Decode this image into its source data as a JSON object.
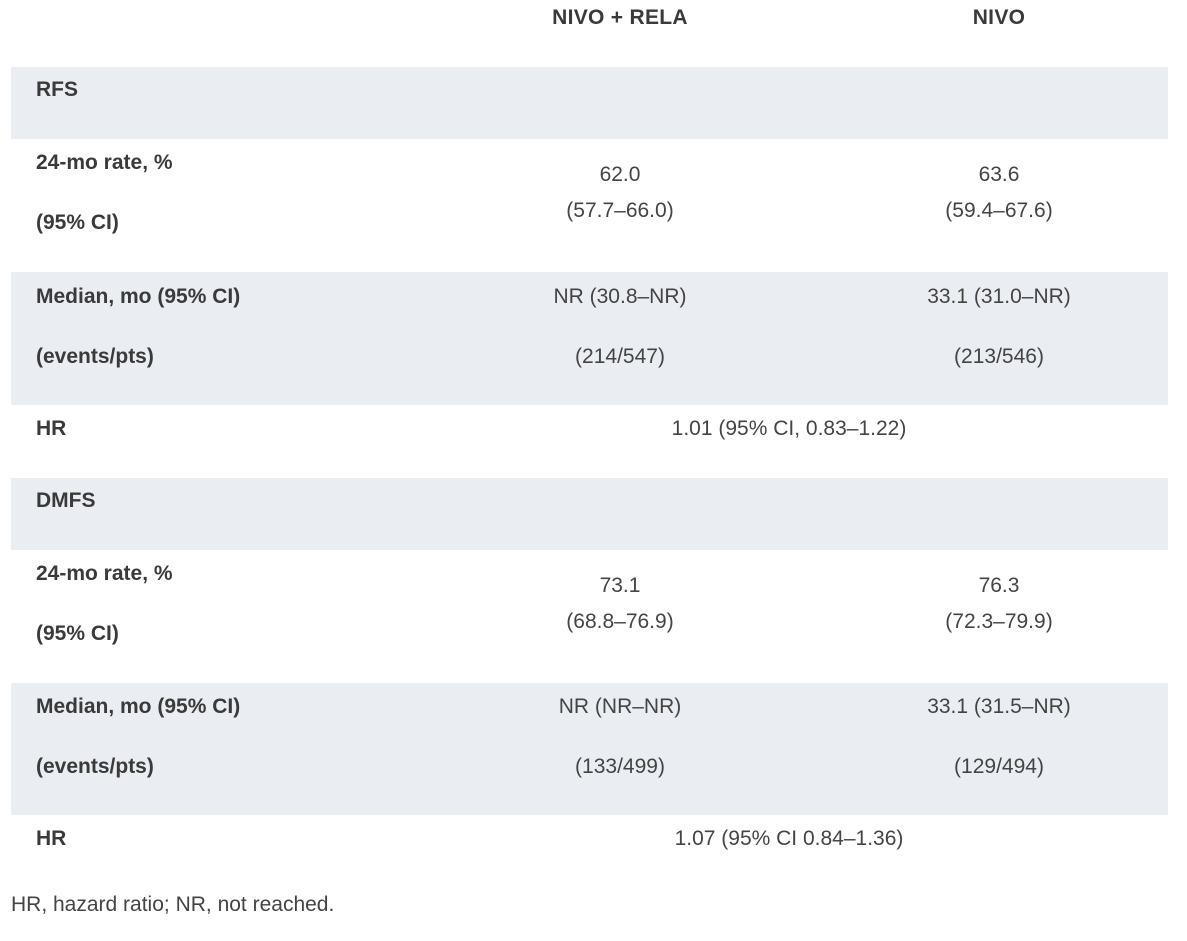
{
  "header": {
    "col1": "NIVO + RELA",
    "col2": "NIVO"
  },
  "rfs": {
    "section": "RFS",
    "rate_label1": "24-mo rate, %",
    "rate_label2": "(95% CI)",
    "rate_c1_value": "62.0",
    "rate_c1_ci": "(57.7–66.0)",
    "rate_c2_value": "63.6",
    "rate_c2_ci": "(59.4–67.6)",
    "median_label1": "Median, mo (95% CI)",
    "median_label2": "(events/pts)",
    "median_c1": "NR (30.8–NR)",
    "events_c1": "(214/547)",
    "median_c2": "33.1 (31.0–NR)",
    "events_c2": "(213/546)",
    "hr_label": "HR",
    "hr_value": "1.01 (95% CI, 0.83–1.22)"
  },
  "dmfs": {
    "section": "DMFS",
    "rate_label1": "24-mo rate, %",
    "rate_label2": "(95% CI)",
    "rate_c1_value": "73.1",
    "rate_c1_ci": "(68.8–76.9)",
    "rate_c2_value": "76.3",
    "rate_c2_ci": "(72.3–79.9)",
    "median_label1": "Median, mo (95% CI)",
    "median_label2": "(events/pts)",
    "median_c1": "NR (NR–NR)",
    "events_c1": "(133/499)",
    "median_c2": "33.1 (31.5–NR)",
    "events_c2": "(129/494)",
    "hr_label": "HR",
    "hr_value": "1.07 (95% CI 0.84–1.36)"
  },
  "footnote": "HR, hazard ratio; NR, not reached.",
  "colors": {
    "shade": "#eaedf2",
    "text": "#3d3d3d"
  }
}
